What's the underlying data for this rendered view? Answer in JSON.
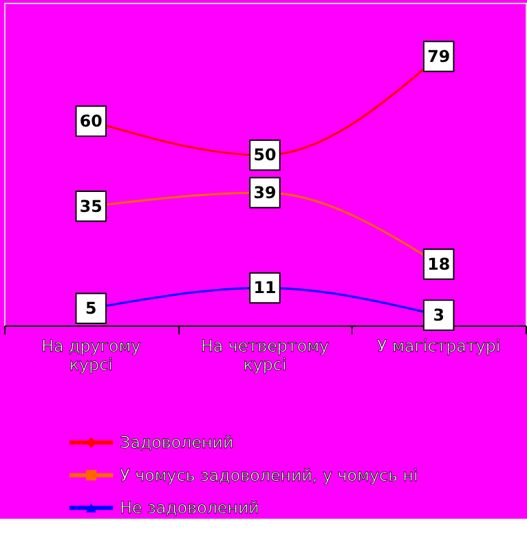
{
  "chart_data": {
    "type": "line",
    "categories": [
      "На другому курсі",
      "На четвертому курсі",
      "У магістратурі"
    ],
    "series": [
      {
        "name": "Задоволений",
        "color": "#ff0000",
        "marker": "diamond",
        "values": [
          60,
          50,
          79
        ]
      },
      {
        "name": "У чомусь задоволений, у чомусь ні",
        "color": "#ff6600",
        "marker": "square",
        "values": [
          35,
          39,
          18
        ]
      },
      {
        "name": "Не задоволений",
        "color": "#0000ff",
        "marker": "triangle",
        "values": [
          5,
          11,
          3
        ]
      }
    ],
    "data_labels": true,
    "legend": "bottom",
    "grid": false
  }
}
